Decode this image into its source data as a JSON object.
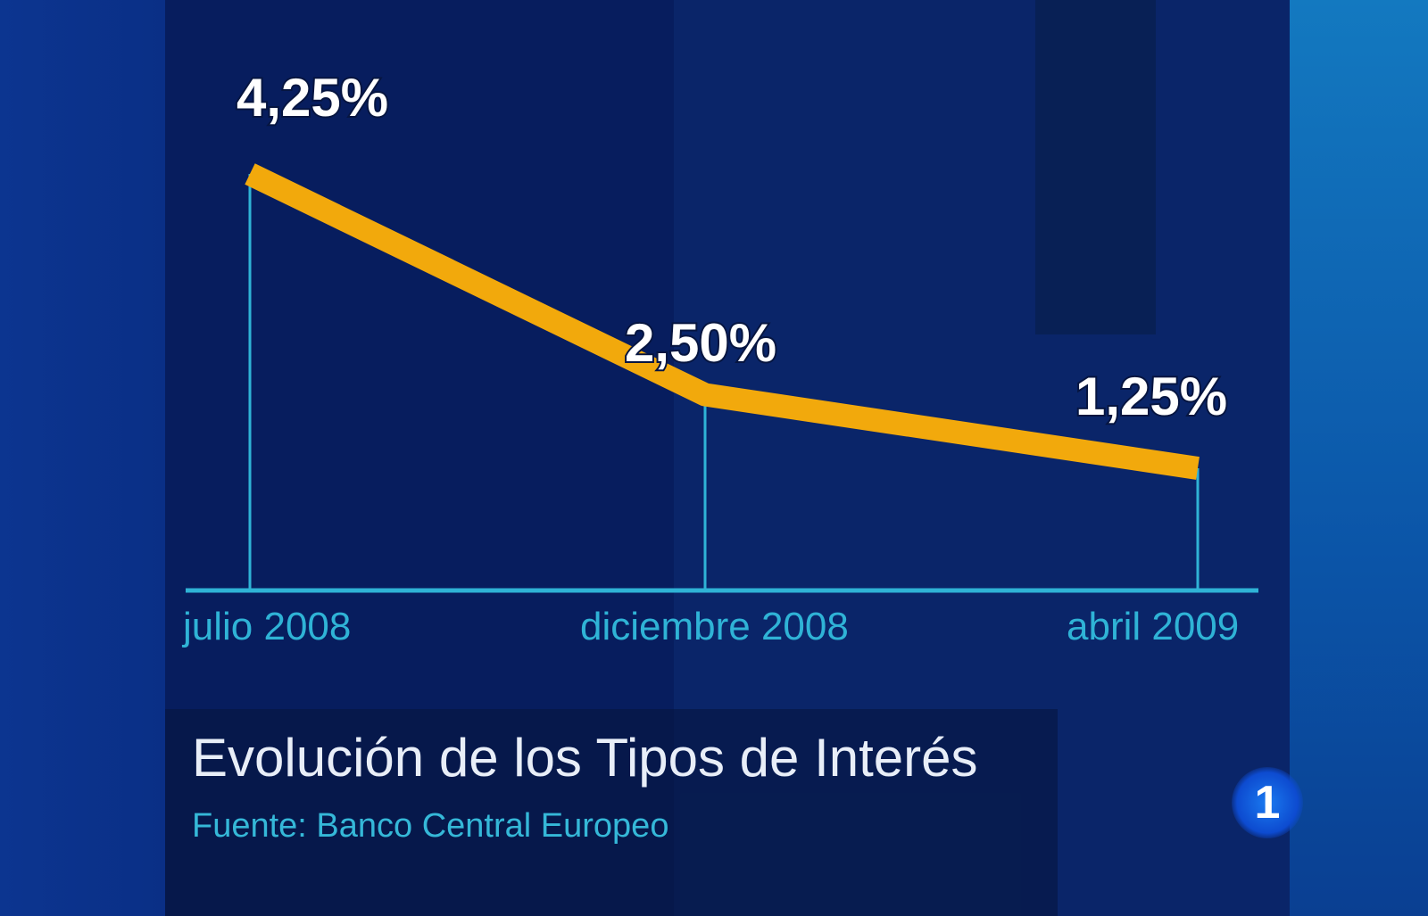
{
  "chart_data": {
    "type": "line",
    "title": "Evolución de los Tipos de Interés",
    "subtitle": "Fuente: Banco Central Europeo",
    "categories": [
      "julio 2008",
      "diciembre 2008",
      "abril 2009"
    ],
    "values": [
      4.25,
      2.5,
      1.25
    ],
    "data_labels": [
      "4,25%",
      "2,50%",
      "1,25%"
    ],
    "grid": false,
    "colors": {
      "line": "#f2a90c",
      "axis": "#2fb3d6",
      "labels": "#ffffff",
      "ticks": "#2fb3d6"
    }
  },
  "logo": {
    "text": "1"
  }
}
